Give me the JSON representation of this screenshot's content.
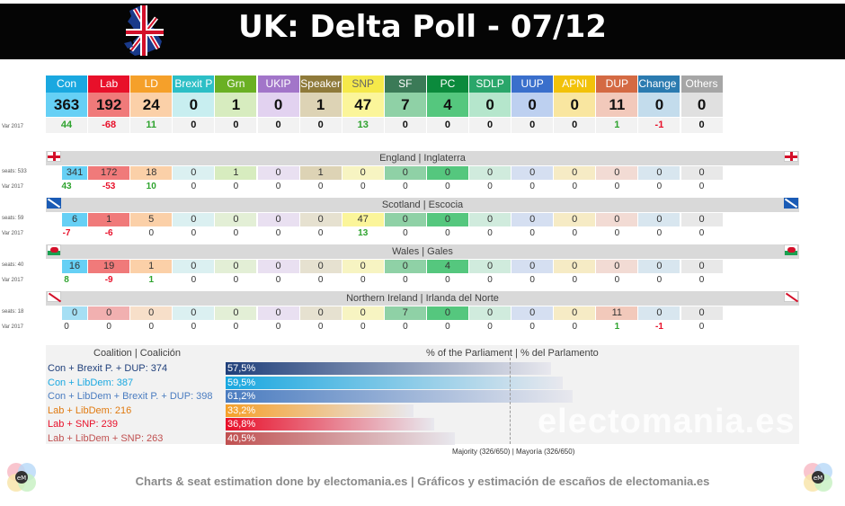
{
  "title": "UK: Delta Poll - 07/12",
  "var_label": "Var 2017",
  "seats_label_prefix": "seats:",
  "chart_data": {
    "type": "table",
    "parties": [
      {
        "name": "Con",
        "color": "#1aa8e0",
        "light": "#66d0f5",
        "seats": "363",
        "var": "44",
        "var_color": "#2ea32e"
      },
      {
        "name": "Lab",
        "color": "#e8102a",
        "light": "#f07a7a",
        "seats": "192",
        "var": "-68",
        "var_color": "#e8102a"
      },
      {
        "name": "LD",
        "color": "#f5a02a",
        "light": "#fbd0a8",
        "seats": "24",
        "var": "11",
        "var_color": "#2ea32e"
      },
      {
        "name": "Brexit P",
        "color": "#2cbfc6",
        "light": "#c8eef0",
        "seats": "0",
        "var": "0",
        "var_color": "#111111"
      },
      {
        "name": "Grn",
        "color": "#6ab023",
        "light": "#d7ecbf",
        "seats": "1",
        "var": "0",
        "var_color": "#111111"
      },
      {
        "name": "UKIP",
        "color": "#a275c9",
        "light": "#e2d2f0",
        "seats": "0",
        "var": "0",
        "var_color": "#111111"
      },
      {
        "name": "Speaker",
        "color": "#8f7a3a",
        "light": "#ddd3b5",
        "seats": "1",
        "var": "0",
        "var_color": "#111111"
      },
      {
        "name": "SNP",
        "color": "#f5e94a",
        "light": "#fbf59a",
        "seats": "47",
        "var": "13",
        "var_color": "#2ea32e"
      },
      {
        "name": "SF",
        "color": "#3b7a57",
        "light": "#8fd1a6",
        "seats": "7",
        "var": "0",
        "var_color": "#111111"
      },
      {
        "name": "PC",
        "color": "#0b8a3c",
        "light": "#55c77e",
        "seats": "4",
        "var": "0",
        "var_color": "#111111"
      },
      {
        "name": "SDLP",
        "color": "#2aa66a",
        "light": "#b5e6cc",
        "seats": "0",
        "var": "0",
        "var_color": "#111111"
      },
      {
        "name": "UUP",
        "color": "#3a6fcc",
        "light": "#bdd0f0",
        "seats": "0",
        "var": "0",
        "var_color": "#111111"
      },
      {
        "name": "APNI",
        "color": "#f2c20a",
        "light": "#f9e6a0",
        "seats": "0",
        "var": "0",
        "var_color": "#111111"
      },
      {
        "name": "DUP",
        "color": "#d46a43",
        "light": "#f2c9bb",
        "seats": "11",
        "var": "1",
        "var_color": "#2ea32e"
      },
      {
        "name": "Change UK",
        "color": "#2b7bb0",
        "light": "#c3dcec",
        "seats": "0",
        "var": "-1",
        "var_color": "#e8102a"
      },
      {
        "name": "Others",
        "color": "#a6a6a6",
        "light": "#e0e0e0",
        "seats": "0",
        "var": "0",
        "var_color": "#111111"
      }
    ],
    "regions": [
      {
        "name": "England | Inglaterra",
        "seats_total": "533",
        "seats": [
          "341",
          "172",
          "18",
          "0",
          "1",
          "0",
          "1",
          "0",
          "0",
          "0",
          "0",
          "0",
          "0",
          "0",
          "0",
          "0"
        ],
        "var": [
          "43",
          "-53",
          "10",
          "0",
          "0",
          "0",
          "0",
          "0",
          "0",
          "0",
          "0",
          "0",
          "0",
          "0",
          "0",
          "0"
        ]
      },
      {
        "name": "Scotland | Escocia",
        "seats_total": "59",
        "seats": [
          "6",
          "1",
          "5",
          "0",
          "0",
          "0",
          "0",
          "47",
          "0",
          "0",
          "0",
          "0",
          "0",
          "0",
          "0",
          "0"
        ],
        "var": [
          "-7",
          "-6",
          "0",
          "0",
          "0",
          "0",
          "0",
          "13",
          "0",
          "0",
          "0",
          "0",
          "0",
          "0",
          "0",
          "0"
        ]
      },
      {
        "name": "Wales | Gales",
        "seats_total": "40",
        "seats": [
          "16",
          "19",
          "1",
          "0",
          "0",
          "0",
          "0",
          "0",
          "0",
          "4",
          "0",
          "0",
          "0",
          "0",
          "0",
          "0"
        ],
        "var": [
          "8",
          "-9",
          "1",
          "0",
          "0",
          "0",
          "0",
          "0",
          "0",
          "0",
          "0",
          "0",
          "0",
          "0",
          "0",
          "0"
        ]
      },
      {
        "name": "Northern Ireland | Irlanda del Norte",
        "seats_total": "18",
        "seats": [
          "0",
          "0",
          "0",
          "0",
          "0",
          "0",
          "0",
          "0",
          "7",
          "0",
          "0",
          "0",
          "0",
          "11",
          "0",
          "0"
        ],
        "var": [
          "0",
          "0",
          "0",
          "0",
          "0",
          "0",
          "0",
          "0",
          "0",
          "0",
          "0",
          "0",
          "0",
          "1",
          "-1",
          "0"
        ]
      }
    ],
    "coalitions_title": "Coalition | Coalición",
    "parliament_title": "% of the Parliament | % del Parlamento",
    "coalitions": [
      {
        "label": "Con + Brexit P. + DUP: 374",
        "pct": 57.5,
        "pct_label": "57,5%",
        "color": "#1f3f7a",
        "text_color": "#1f3f7a"
      },
      {
        "label": "Con + LibDem: 387",
        "pct": 59.5,
        "pct_label": "59,5%",
        "color": "#1aa8e0",
        "text_color": "#1aa8e0"
      },
      {
        "label": "Con + LibDem + Brexit P. + DUP: 398",
        "pct": 61.2,
        "pct_label": "61,2%",
        "color": "#4a7cc0",
        "text_color": "#4a7cc0"
      },
      {
        "label": "Lab + LibDem: 216",
        "pct": 33.2,
        "pct_label": "33,2%",
        "color": "#f5a02a",
        "text_color": "#e07a10"
      },
      {
        "label": "Lab + SNP: 239",
        "pct": 36.8,
        "pct_label": "36,8%",
        "color": "#e8102a",
        "text_color": "#e8102a"
      },
      {
        "label": "Lab + LibDem + SNP: 263",
        "pct": 40.5,
        "pct_label": "40,5%",
        "color": "#c05050",
        "text_color": "#c05050"
      }
    ],
    "majority_pct": 50.2,
    "majority_label": "Majority (326/650) | Mayoría (326/650)",
    "xlim": [
      0,
      100
    ]
  },
  "watermark": "electomania.es",
  "footer": "Charts & seat estimation done by electomania.es  |  Gráficos y estimación de escaños de electomania.es",
  "logo_text": "eM"
}
